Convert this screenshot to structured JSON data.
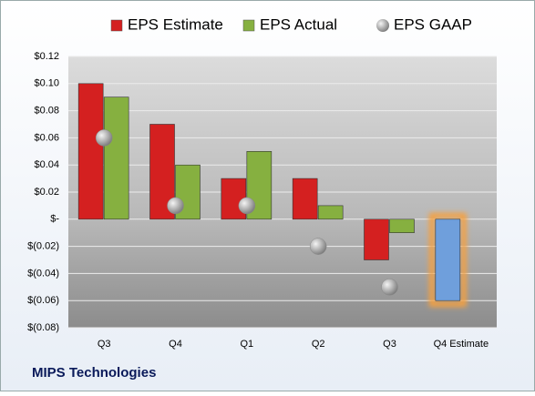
{
  "chart_data": {
    "type": "bar",
    "caption": "MIPS Technologies",
    "categories": [
      "Q3",
      "Q4",
      "Q1",
      "Q2",
      "Q3",
      "Q4 Estimate"
    ],
    "series": [
      {
        "name": "EPS Estimate",
        "color": "#d42020",
        "values": [
          0.1,
          0.07,
          0.03,
          0.03,
          -0.03,
          -0.06
        ],
        "highlight": {
          "index": 5,
          "color": "#6f9fdc",
          "glow": "#f5a040"
        }
      },
      {
        "name": "EPS Actual",
        "color": "#86b040",
        "values": [
          0.09,
          0.04,
          0.05,
          0.01,
          -0.01,
          null
        ]
      },
      {
        "name": "EPS GAAP",
        "color": "#a8a8a8",
        "marker": "circle",
        "values": [
          0.06,
          0.01,
          0.01,
          -0.02,
          -0.05,
          null
        ]
      }
    ],
    "ylim": [
      -0.08,
      0.12
    ],
    "yticks": [
      {
        "value": 0.12,
        "label": "$0.12"
      },
      {
        "value": 0.1,
        "label": "$0.10"
      },
      {
        "value": 0.08,
        "label": "$0.08"
      },
      {
        "value": 0.06,
        "label": "$0.06"
      },
      {
        "value": 0.04,
        "label": "$0.04"
      },
      {
        "value": 0.02,
        "label": "$0.02"
      },
      {
        "value": 0,
        "label": "$-"
      },
      {
        "value": -0.02,
        "label": "$(0.02)"
      },
      {
        "value": -0.04,
        "label": "$(0.04)"
      },
      {
        "value": -0.06,
        "label": "$(0.06)"
      },
      {
        "value": -0.08,
        "label": "$(0.08)"
      }
    ],
    "grid": true,
    "legend": "top"
  }
}
